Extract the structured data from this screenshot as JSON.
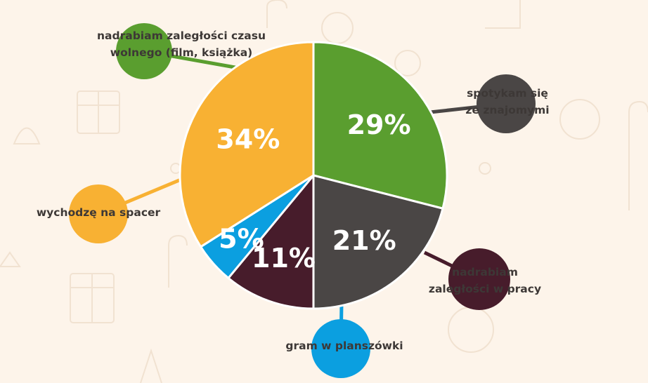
{
  "colors": {
    "background": "#fdf4ea",
    "green": "#5a9e2f",
    "gray": "#4a4645",
    "maroon": "#471c2b",
    "blue": "#0b9fe0",
    "orange": "#f8b133",
    "label_text": "#3d3836"
  },
  "chart_data": {
    "type": "pie",
    "start": "top",
    "direction": "clockwise",
    "slices": [
      {
        "label": "nadrabiam zaległości czasu wolnego (film, książka)",
        "value": 29,
        "display": "29%",
        "color": "#5a9e2f"
      },
      {
        "label": "spotykam się ze znajomymi",
        "value": 21,
        "display": "21%",
        "color": "#4a4645"
      },
      {
        "label": "nadrabiam zaległości w pracy",
        "value": 11,
        "display": "11%",
        "color": "#471c2b"
      },
      {
        "label": "gram w planszówki",
        "value": 5,
        "display": "5%",
        "color": "#0b9fe0"
      },
      {
        "label": "wychodzę na spacer",
        "value": 34,
        "display": "34%",
        "color": "#f8b133"
      }
    ],
    "callouts": [
      {
        "lines": [
          "nadrabiam zaległości czasu",
          "wolnego (film, książka)"
        ]
      },
      {
        "lines": [
          "spotykam się",
          "ze znajomymi"
        ]
      },
      {
        "lines": [
          "nadrabiam",
          "zaległości w pracy"
        ]
      },
      {
        "lines": [
          "gram w planszówki"
        ]
      },
      {
        "lines": [
          "wychodzę na spacer"
        ]
      }
    ]
  }
}
